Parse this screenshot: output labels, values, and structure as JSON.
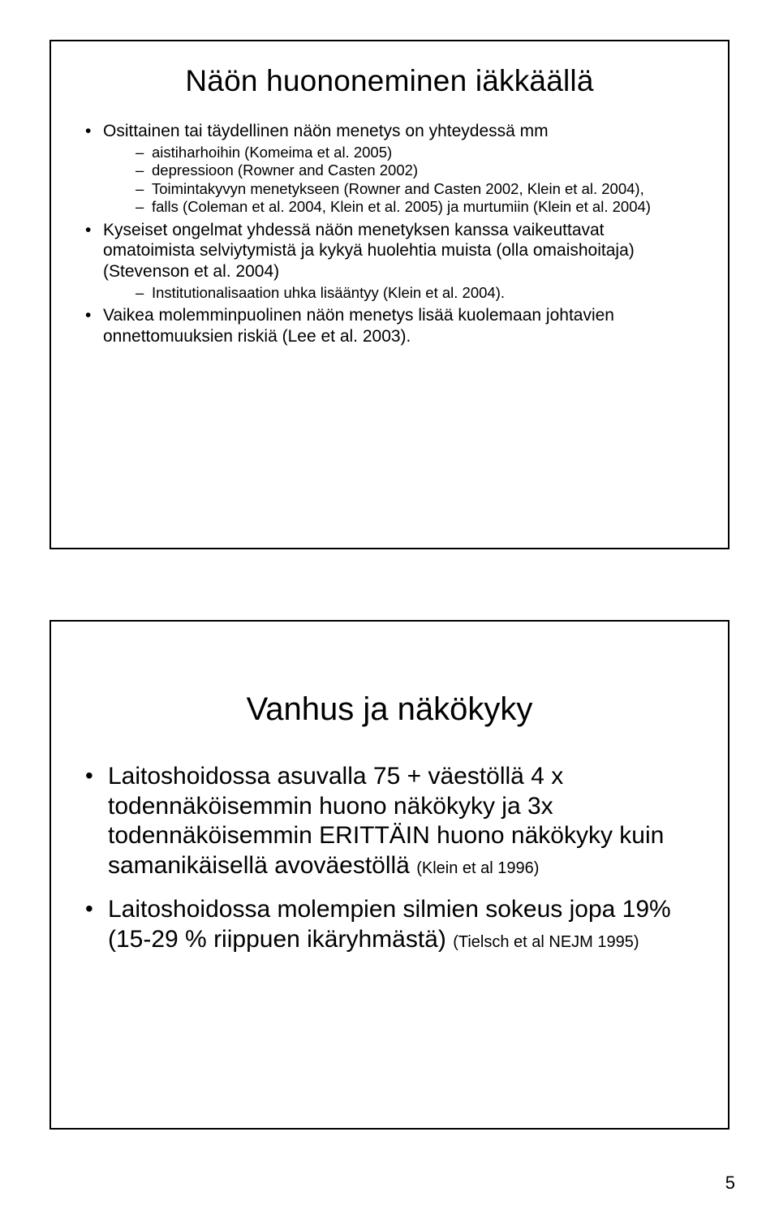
{
  "page_number": "5",
  "slide1": {
    "title": "Näön huononeminen iäkkäällä",
    "bullets": [
      {
        "text": "Osittainen tai täydellinen näön menetys on yhteydessä mm",
        "sub": [
          "aistiharhoihin (Komeima et al. 2005)",
          "depressioon (Rowner and Casten 2002)",
          "Toimintakyvyn menetykseen (Rowner and Casten 2002, Klein et al. 2004),",
          "falls (Coleman et al. 2004, Klein et al. 2005) ja murtumiin (Klein et al. 2004)"
        ]
      },
      {
        "text": "Kyseiset ongelmat yhdessä näön menetyksen kanssa vaikeuttavat omatoimista selviytymistä ja kykyä huolehtia muista (olla omaishoitaja)  (Stevenson et al. 2004)",
        "sub": [
          "Institutionalisaation uhka lisääntyy (Klein et al. 2004)."
        ]
      },
      {
        "text": "Vaikea molemminpuolinen näön menetys lisää kuolemaan johtavien onnettomuuksien riskiä (Lee et al. 2003).",
        "sub": []
      }
    ]
  },
  "slide2": {
    "title": "Vanhus ja näkökyky",
    "bullets": [
      {
        "main": "Laitoshoidossa asuvalla 75 + väestöllä 4 x todennäköisemmin huono näkökyky ja 3x todennäköisemmin ERITTÄIN huono näkökyky kuin samanikäisellä avoväestöllä ",
        "ref": "(Klein et al 1996)"
      },
      {
        "main": "Laitoshoidossa molempien silmien sokeus jopa 19% (15-29 % riippuen ikäryhmästä) ",
        "ref": "(Tielsch et al NEJM 1995)"
      }
    ]
  }
}
